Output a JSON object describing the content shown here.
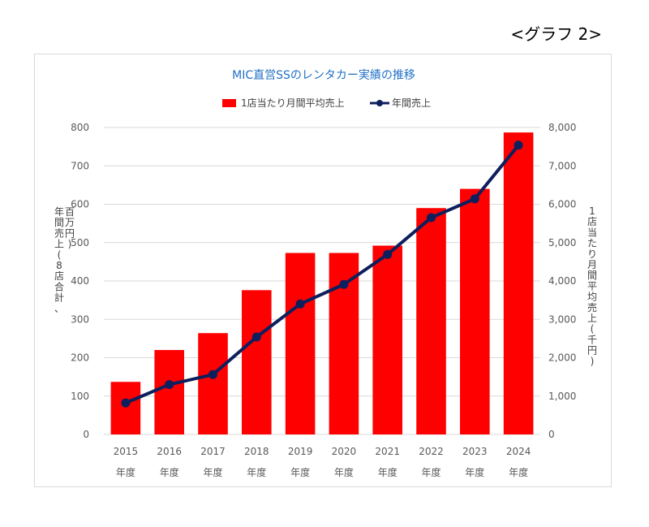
{
  "header": {
    "graph_label": "<グラフ 2>"
  },
  "chart_data": {
    "type": "bar",
    "title": "MIC直営SSのレンタカー実績の推移",
    "categories": [
      "2015",
      "2016",
      "2017",
      "2018",
      "2019",
      "2020",
      "2021",
      "2022",
      "2023",
      "2024"
    ],
    "category_suffix": "年度",
    "series": [
      {
        "name": "1店当たり月間平均売上",
        "type": "bar",
        "axis": "right",
        "color": "#ff0000",
        "values": [
          1370,
          2200,
          2640,
          3760,
          4730,
          4730,
          4920,
          5900,
          6400,
          7870
        ]
      },
      {
        "name": "年間売上",
        "type": "line",
        "axis": "left",
        "color": "#0d1f5c",
        "values": [
          82,
          130,
          156,
          254,
          340,
          391,
          469,
          565,
          614,
          754
        ]
      }
    ],
    "y_left": {
      "label": "年間売上(8店合計、百万円)",
      "label_lines": [
        "年間売上(8店合計、",
        "百万円)"
      ],
      "range": [
        0,
        800
      ],
      "ticks": [
        "0",
        "100",
        "200",
        "300",
        "400",
        "500",
        "600",
        "700",
        "800"
      ]
    },
    "y_right": {
      "label": "1店当たり月間平均売上(千円)",
      "range": [
        0,
        8000
      ],
      "ticks": [
        "0",
        "1,000",
        "2,000",
        "3,000",
        "4,000",
        "5,000",
        "6,000",
        "7,000",
        "8,000"
      ]
    },
    "grid": true,
    "legend_position": "top"
  }
}
